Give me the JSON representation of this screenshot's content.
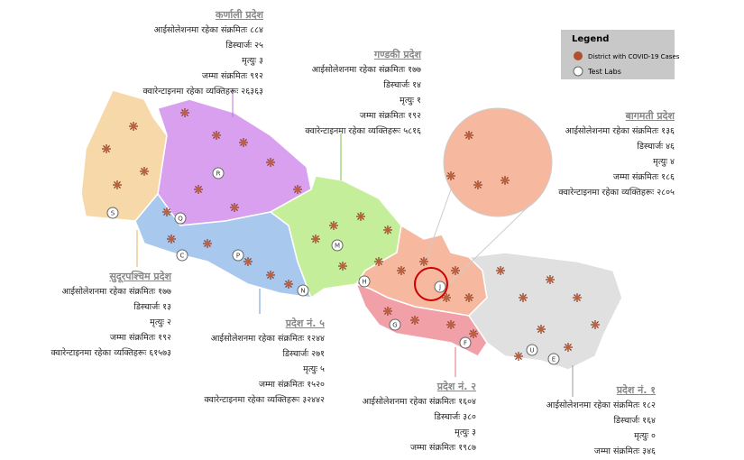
{
  "legend": {
    "title": "Legend",
    "items": [
      "District with COVID-19 Cases",
      "Test Labs"
    ]
  },
  "provinces": [
    {
      "name": "कर्णाली प्रदेश",
      "lines": [
        "आईसोलेशनमा रहेका संक्रमितः ८८४",
        "डिस्चार्जः २५",
        "मृत्युः ३",
        "जम्मा संक्रमितः ९१२",
        "क्वारेन्टाइनमा रहेका व्यक्तिहरूः २६३६३"
      ]
    },
    {
      "name": "गण्डकी प्रदेश",
      "lines": [
        "आईसोलेशनमा रहेका संक्रमितः १७७",
        "डिस्चार्जः १४",
        "मृत्युः १",
        "जम्मा संक्रमितः १९२",
        "क्वारेन्टाइनमा रहेका व्यक्तिहरूः ५८१६"
      ]
    },
    {
      "name": "बागमती प्रदेश",
      "lines": [
        "आईसोलेशनमा रहेका संक्रमितः १३६",
        "डिस्चार्जः ४६",
        "मृत्युः ४",
        "जम्मा संक्रमितः १८६",
        "क्वारेन्टाइनमा रहेका व्यक्तिहरूः २८०५"
      ]
    },
    {
      "name": "सुदूरपश्चिम प्रदेश",
      "lines": [
        "आईसोलेशनमा रहेका संक्रमितः १७७",
        "डिस्चार्जः १३",
        "मृत्युः २",
        "जम्मा संक्रमितः १९२",
        "क्वारेन्टाइनमा रहेका व्यक्तिहरूः ६१५७३"
      ]
    },
    {
      "name": "प्रदेश नं. ५",
      "lines": [
        "आईसोलेशनमा रहेका संक्रमितः १२४४",
        "डिस्चार्जः २७१",
        "मृत्युः ५",
        "जम्मा संक्रमितः १५२०",
        "क्वारेन्टाइनमा रहेका व्यक्तिहरूः ३२४४२"
      ]
    },
    {
      "name": "प्रदेश नं. २",
      "lines": [
        "आईसोलेशनमा रहेका संक्रमितः १६०४",
        "डिस्चार्जः ३८०",
        "मृत्युः ३",
        "जम्मा संक्रमितः १९८७"
      ]
    },
    {
      "name": "प्रदेश नं. १",
      "lines": [
        "आईसोलेशनमा रहेका संक्रमितः १८२",
        "डिस्चार्जः १६४",
        "मृत्युः ०",
        "जम्मा संक्रमितः ३४६"
      ]
    }
  ],
  "labs": [
    "R",
    "Q",
    "S",
    "C",
    "P",
    "N",
    "M",
    "H",
    "G",
    "J",
    "F",
    "U",
    "E"
  ]
}
